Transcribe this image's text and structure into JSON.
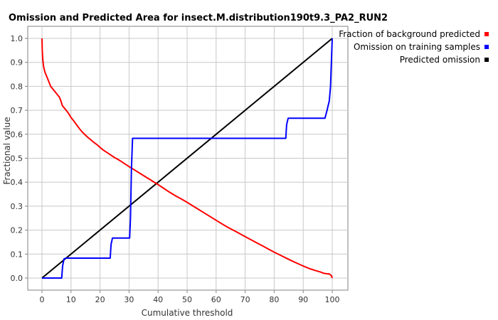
{
  "chart_data": {
    "type": "line",
    "title": "Omission and Predicted Area for insect.M.distribution190t9.3_PA2_RUN2",
    "xlabel": "Cumulative threshold",
    "ylabel": "Fractional value",
    "xlim": [
      0,
      100
    ],
    "ylim": [
      0,
      1
    ],
    "xticks": [
      "0",
      "10",
      "20",
      "30",
      "40",
      "50",
      "60",
      "70",
      "80",
      "90",
      "100"
    ],
    "yticks": [
      "0.0",
      "0.1",
      "0.2",
      "0.3",
      "0.4",
      "0.5",
      "0.6",
      "0.7",
      "0.8",
      "0.9",
      "1.0"
    ],
    "grid": true,
    "legend_position": "top-right",
    "series": [
      {
        "name": "Fraction of background predicted",
        "color": "#ff0000",
        "x": [
          0,
          0.1,
          0.3,
          0.6,
          1,
          2,
          3,
          4,
          5,
          6,
          6.5,
          7,
          8,
          9,
          10,
          11,
          12,
          13,
          14,
          15,
          16,
          17,
          18,
          19,
          20,
          21,
          22,
          23,
          24,
          25,
          26,
          27,
          28,
          29,
          30,
          32,
          34,
          36,
          38,
          40,
          42,
          44,
          46,
          48,
          50,
          52,
          54,
          56,
          58,
          60,
          62,
          64,
          66,
          68,
          70,
          72,
          74,
          76,
          78,
          80,
          82,
          84,
          86,
          88,
          90,
          92,
          94,
          96,
          97,
          98,
          99,
          99.7,
          100
        ],
        "y": [
          1.0,
          0.95,
          0.91,
          0.88,
          0.86,
          0.83,
          0.8,
          0.785,
          0.77,
          0.755,
          0.74,
          0.72,
          0.705,
          0.69,
          0.67,
          0.655,
          0.638,
          0.622,
          0.608,
          0.596,
          0.585,
          0.575,
          0.565,
          0.556,
          0.545,
          0.535,
          0.527,
          0.519,
          0.511,
          0.503,
          0.496,
          0.489,
          0.481,
          0.473,
          0.465,
          0.45,
          0.435,
          0.42,
          0.405,
          0.39,
          0.374,
          0.358,
          0.343,
          0.33,
          0.316,
          0.301,
          0.286,
          0.271,
          0.256,
          0.241,
          0.226,
          0.212,
          0.199,
          0.186,
          0.173,
          0.16,
          0.147,
          0.134,
          0.121,
          0.108,
          0.096,
          0.084,
          0.072,
          0.061,
          0.05,
          0.04,
          0.032,
          0.025,
          0.02,
          0.018,
          0.017,
          0.01,
          0.0
        ]
      },
      {
        "name": "Omission on training samples",
        "color": "#0000ff",
        "x": [
          0,
          6.8,
          7.1,
          7.6,
          8.2,
          23.5,
          23.8,
          24.3,
          30.2,
          30.5,
          30.8,
          31.2,
          84,
          84.3,
          84.8,
          97.5,
          98.2,
          99,
          99.4,
          99.7,
          100
        ],
        "y": [
          0.0,
          0.0,
          0.05,
          0.08,
          0.083,
          0.083,
          0.14,
          0.167,
          0.167,
          0.25,
          0.45,
          0.583,
          0.583,
          0.64,
          0.667,
          0.667,
          0.7,
          0.74,
          0.8,
          0.9,
          1.0
        ]
      },
      {
        "name": "Predicted omission",
        "color": "#000000",
        "x": [
          0,
          100
        ],
        "y": [
          0,
          1
        ]
      }
    ]
  }
}
